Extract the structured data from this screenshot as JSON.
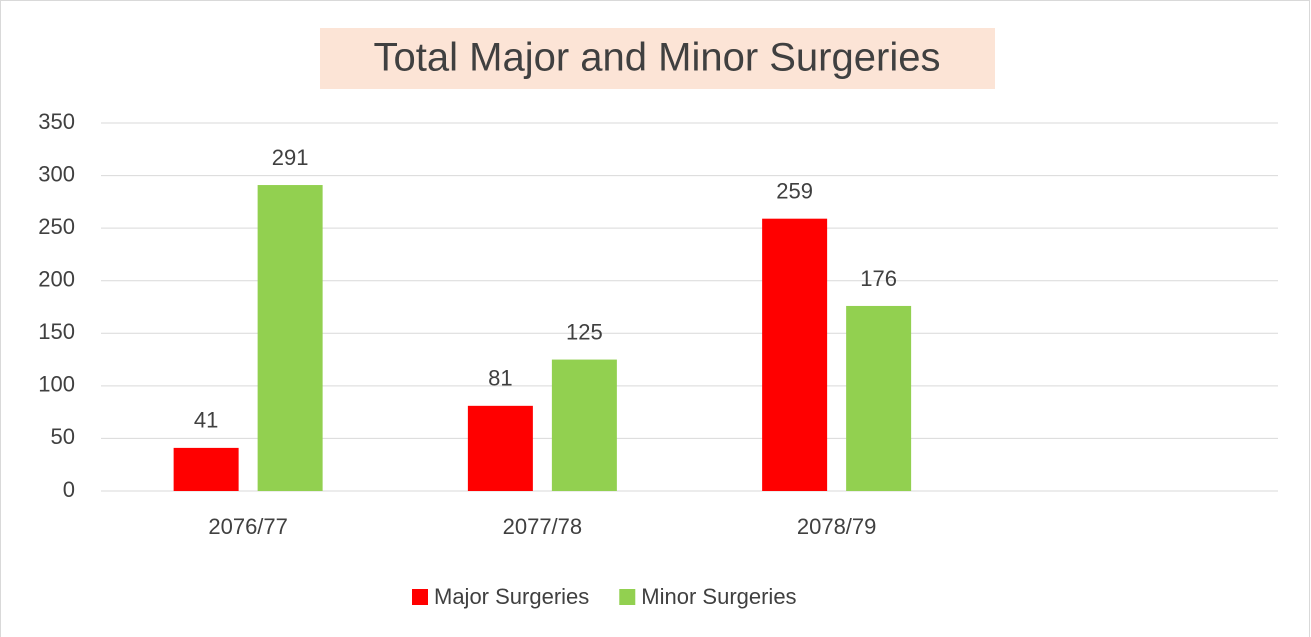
{
  "chart_data": {
    "type": "bar",
    "title": "Total Major and Minor Surgeries",
    "categories": [
      "2076/77",
      "2077/78",
      "2078/79",
      null
    ],
    "series": [
      {
        "name": "Major Surgeries",
        "color": "#ff0000",
        "values": [
          41,
          81,
          259,
          null
        ]
      },
      {
        "name": "Minor Surgeries",
        "color": "#92d050",
        "values": [
          291,
          125,
          176,
          null
        ]
      }
    ],
    "ylim": [
      0,
      350
    ],
    "yticks": [
      0,
      50,
      100,
      150,
      200,
      250,
      300,
      350
    ],
    "grid": true,
    "legend": "bottom"
  }
}
